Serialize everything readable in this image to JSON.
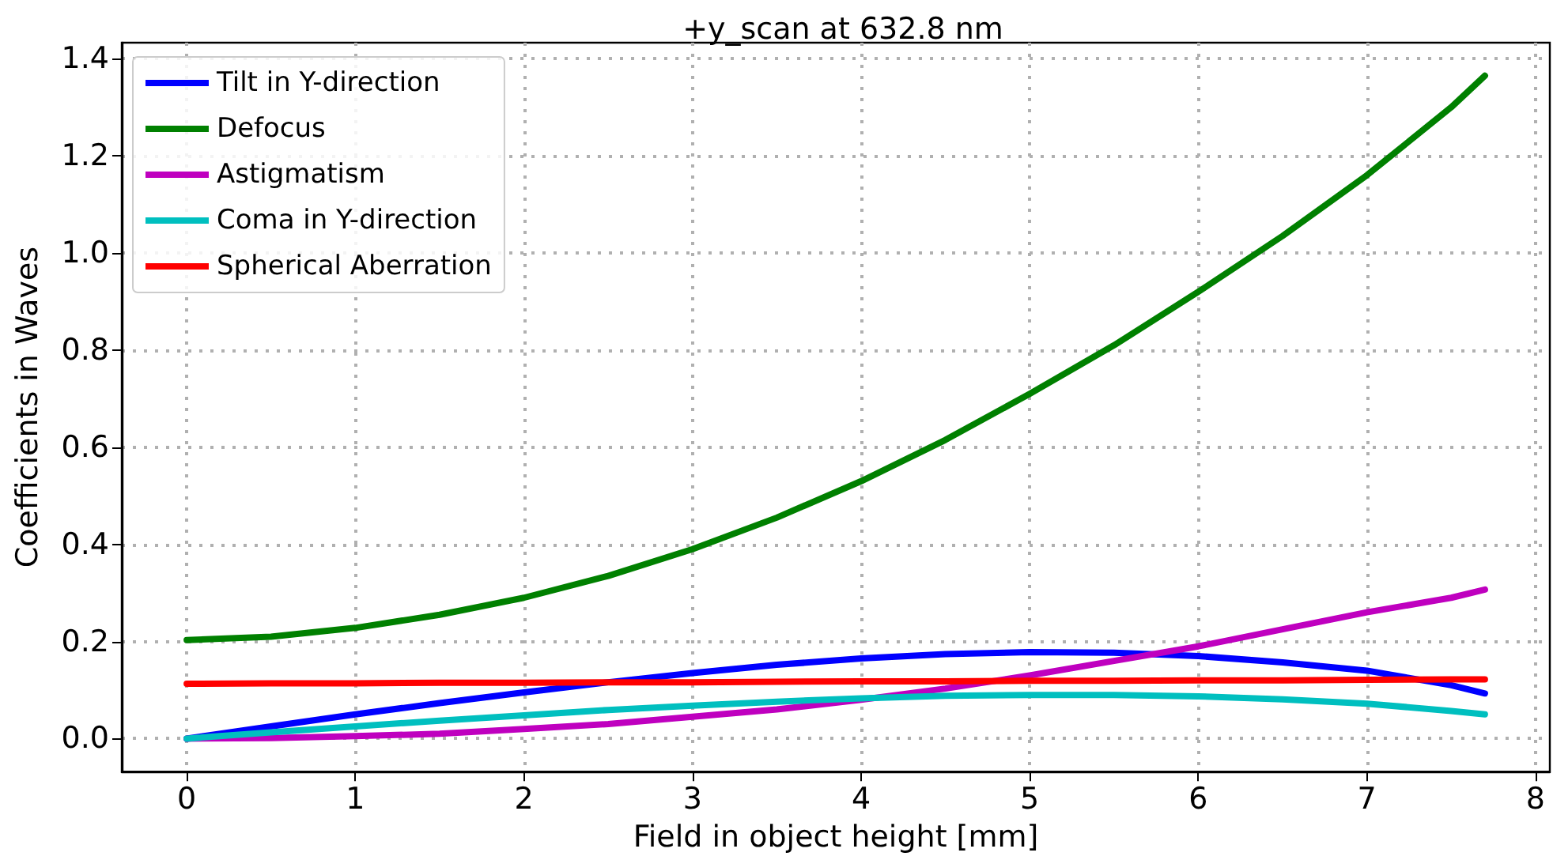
{
  "chart_data": {
    "type": "line",
    "title": "+y_scan at 632.8 nm",
    "xlabel": "Field in object height [mm]",
    "ylabel": "Coefficients in Waves",
    "x": [
      0,
      0.5,
      1,
      1.5,
      2,
      2.5,
      3,
      3.5,
      4,
      4.5,
      5,
      5.5,
      6,
      6.5,
      7,
      7.5,
      7.7
    ],
    "series": [
      {
        "name": "Tilt in Y-direction",
        "color": "#0000ff",
        "values": [
          0,
          0.025,
          0.05,
          0.073,
          0.095,
          0.116,
          0.135,
          0.152,
          0.165,
          0.174,
          0.178,
          0.177,
          0.17,
          0.157,
          0.14,
          0.11,
          0.093
        ]
      },
      {
        "name": "Defocus",
        "color": "#008000",
        "values": [
          0.203,
          0.21,
          0.228,
          0.255,
          0.29,
          0.335,
          0.39,
          0.455,
          0.53,
          0.615,
          0.71,
          0.81,
          0.92,
          1.035,
          1.16,
          1.3,
          1.365
        ]
      },
      {
        "name": "Astigmatism",
        "color": "#bf00bf",
        "values": [
          0,
          0.001,
          0.005,
          0.01,
          0.02,
          0.03,
          0.045,
          0.06,
          0.08,
          0.103,
          0.13,
          0.16,
          0.19,
          0.225,
          0.26,
          0.29,
          0.307
        ]
      },
      {
        "name": "Coma in Y-direction",
        "color": "#00bfbf",
        "values": [
          0,
          0.013,
          0.025,
          0.037,
          0.048,
          0.059,
          0.068,
          0.076,
          0.083,
          0.088,
          0.09,
          0.09,
          0.087,
          0.081,
          0.072,
          0.057,
          0.05
        ]
      },
      {
        "name": "Spherical Aberration",
        "color": "#ff0000",
        "values": [
          0.113,
          0.114,
          0.114,
          0.115,
          0.115,
          0.116,
          0.116,
          0.117,
          0.118,
          0.118,
          0.119,
          0.119,
          0.12,
          0.12,
          0.121,
          0.122,
          0.122
        ]
      }
    ],
    "xlim": [
      -0.385,
      8.085
    ],
    "xticks": [
      0,
      1,
      2,
      3,
      4,
      5,
      6,
      7,
      8
    ],
    "ylim": [
      -0.068,
      1.433
    ],
    "yticks": [
      {
        "value": 0,
        "label": "0.0"
      },
      {
        "value": 0.2,
        "label": "0.2"
      },
      {
        "value": 0.4,
        "label": "0.4"
      },
      {
        "value": 0.6,
        "label": "0.6"
      },
      {
        "value": 0.8,
        "label": "0.8"
      },
      {
        "value": 1.0,
        "label": "1.0"
      },
      {
        "value": 1.2,
        "label": "1.2"
      },
      {
        "value": 1.4,
        "label": "1.4"
      }
    ],
    "grid": true,
    "legend": "top left",
    "marker": "none",
    "line_style": "solid"
  }
}
